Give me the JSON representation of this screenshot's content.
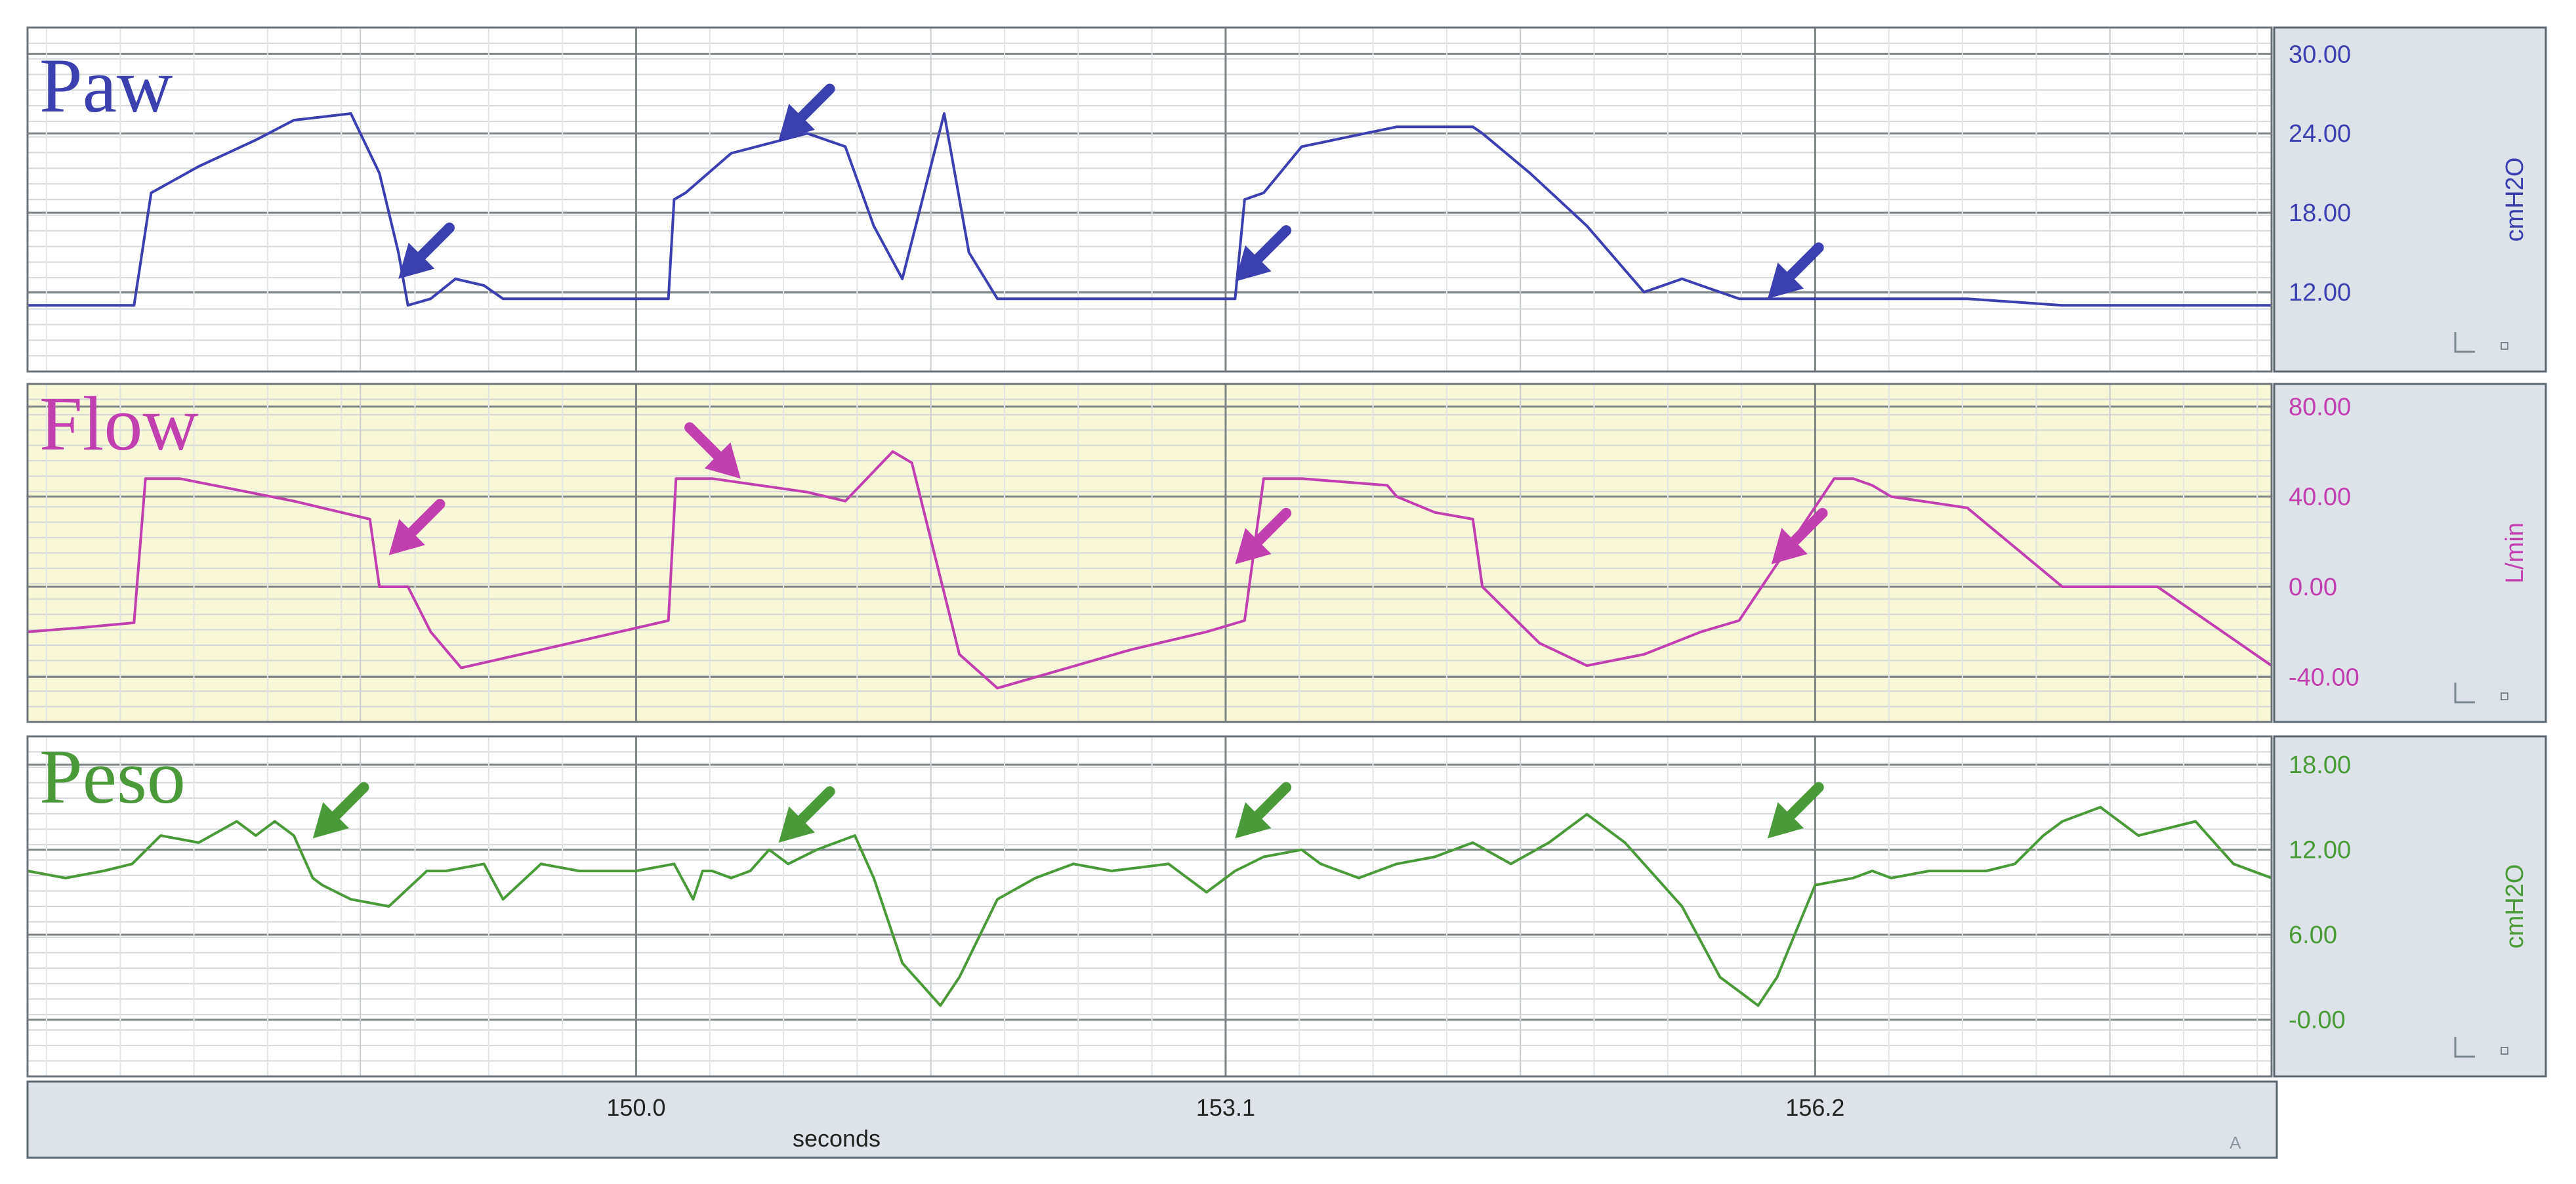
{
  "x_axis": {
    "label": "seconds",
    "ticks": [
      "150.0",
      "153.1",
      "156.2"
    ]
  },
  "chart_data": [
    {
      "type": "line",
      "title": "Paw",
      "ylabel": "cmH2O",
      "ylim": [
        6,
        32
      ],
      "yticks": [
        "30.00",
        "24.00",
        "18.00",
        "12.00"
      ],
      "color": "#3b3fb0",
      "series": [
        {
          "x": [
            146.8,
            147.1,
            147.36,
            147.45,
            147.7,
            148.0,
            148.2,
            148.5,
            148.65,
            148.75,
            148.8,
            148.92,
            149.05,
            149.2,
            149.3,
            149.5,
            150.0,
            150.17,
            150.2,
            150.26,
            150.5,
            150.9,
            151.1,
            151.25,
            151.4,
            151.62,
            151.75,
            151.9,
            152.3,
            152.5,
            152.6,
            153.0,
            153.15,
            153.2,
            153.3,
            153.5,
            154.0,
            154.4,
            154.45,
            154.7,
            155.0,
            155.3,
            155.5,
            155.6,
            155.8,
            155.9,
            156.05,
            156.15,
            156.4,
            156.6,
            157.0,
            157.5,
            158.6
          ],
          "values": [
            11,
            11,
            11,
            19.5,
            21.5,
            23.5,
            25,
            25.5,
            21,
            15,
            11,
            11.5,
            13,
            12.5,
            11.5,
            11.5,
            11.5,
            11.5,
            19,
            19.5,
            22.5,
            24,
            23,
            17,
            13,
            25.5,
            15,
            11.5,
            11.5,
            11.5,
            11.5,
            11.5,
            11.5,
            19,
            19.5,
            23,
            24.5,
            24.5,
            24,
            21,
            17,
            12,
            13,
            12.5,
            11.5,
            11.5,
            11.5,
            11.5,
            11.5,
            11.5,
            11.5,
            11,
            11
          ]
        }
      ]
    },
    {
      "type": "line",
      "title": "Flow",
      "ylabel": "L/min",
      "ylim": [
        -60,
        90
      ],
      "yticks": [
        "80.00",
        "40.00",
        "0.00",
        "-40.00"
      ],
      "color": "#c23fb0",
      "series": [
        {
          "x": [
            146.8,
            147.1,
            147.36,
            147.42,
            147.6,
            148.2,
            148.6,
            148.65,
            148.8,
            148.92,
            149.08,
            149.5,
            150.17,
            150.21,
            150.4,
            150.9,
            151.1,
            151.35,
            151.45,
            151.7,
            151.9,
            152.6,
            153.0,
            153.2,
            153.3,
            153.5,
            153.95,
            154.0,
            154.2,
            154.4,
            154.45,
            154.75,
            155.0,
            155.3,
            155.6,
            155.8,
            156.3,
            156.4,
            156.5,
            156.6,
            157.0,
            157.5,
            158.0,
            158.6
          ],
          "values": [
            -20,
            -18,
            -16,
            48,
            48,
            38,
            30,
            0,
            0,
            -20,
            -36,
            -28,
            -15,
            48,
            48,
            42,
            38,
            60,
            55,
            -30,
            -45,
            -28,
            -20,
            -15,
            48,
            48,
            45,
            40,
            33,
            30,
            0,
            -25,
            -35,
            -30,
            -20,
            -15,
            48,
            48,
            45,
            40,
            35,
            0,
            0,
            -35
          ]
        }
      ]
    },
    {
      "type": "line",
      "title": "Peso",
      "ylabel": "cmH2O",
      "ylim": [
        -4,
        20
      ],
      "yticks": [
        "18.00",
        "12.00",
        "6.00",
        "-0.00"
      ],
      "color": "#4a9a3a",
      "series": [
        {
          "x": [
            146.8,
            147.0,
            147.2,
            147.35,
            147.5,
            147.7,
            147.9,
            148.0,
            148.1,
            148.2,
            148.3,
            148.35,
            148.5,
            148.7,
            148.9,
            149.0,
            149.2,
            149.3,
            149.5,
            149.7,
            150.0,
            150.2,
            150.3,
            150.35,
            150.4,
            150.5,
            150.6,
            150.7,
            150.8,
            150.95,
            151.05,
            151.15,
            151.25,
            151.4,
            151.6,
            151.7,
            151.9,
            152.1,
            152.3,
            152.5,
            152.8,
            153.0,
            153.15,
            153.3,
            153.5,
            153.6,
            153.8,
            154.0,
            154.2,
            154.4,
            154.6,
            154.8,
            155.0,
            155.2,
            155.5,
            155.7,
            155.9,
            156.0,
            156.2,
            156.4,
            156.5,
            156.6,
            156.8,
            157.1,
            157.25,
            157.4,
            157.5,
            157.7,
            157.9,
            158.2,
            158.4,
            158.6
          ],
          "values": [
            10.5,
            10,
            10.5,
            11,
            13,
            12.5,
            14,
            13,
            14,
            13,
            10,
            9.5,
            8.5,
            8,
            10.5,
            10.5,
            11,
            8.5,
            11,
            10.5,
            10.5,
            11,
            8.5,
            10.5,
            10.5,
            10,
            10.5,
            12,
            11,
            12,
            12.5,
            13,
            10,
            4,
            1,
            3,
            8.5,
            10,
            11,
            10.5,
            11,
            9,
            10.5,
            11.5,
            12,
            11,
            10,
            11,
            11.5,
            12.5,
            11,
            12.5,
            14.5,
            12.5,
            8,
            3,
            1,
            3,
            9.5,
            10,
            10.5,
            10,
            10.5,
            10.5,
            11,
            13,
            14,
            15,
            13,
            14,
            11,
            10
          ]
        }
      ]
    }
  ]
}
